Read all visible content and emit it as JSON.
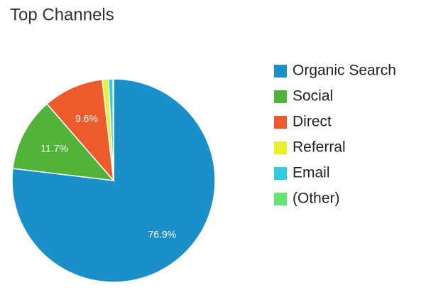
{
  "chart_data": {
    "type": "pie",
    "title": "Top Channels",
    "categories": [
      "Organic Search",
      "Social",
      "Direct",
      "Referral",
      "Email",
      "(Other)"
    ],
    "values": [
      76.9,
      11.7,
      9.6,
      1.0,
      0.7,
      0.1
    ],
    "value_labels": [
      "76.9%",
      "11.7%",
      "9.6%",
      null,
      null,
      null
    ],
    "colors": [
      "#1b8fc7",
      "#52b33a",
      "#ed5a2b",
      "#ecee30",
      "#2ecbe3",
      "#64e572"
    ],
    "legend": "right"
  }
}
